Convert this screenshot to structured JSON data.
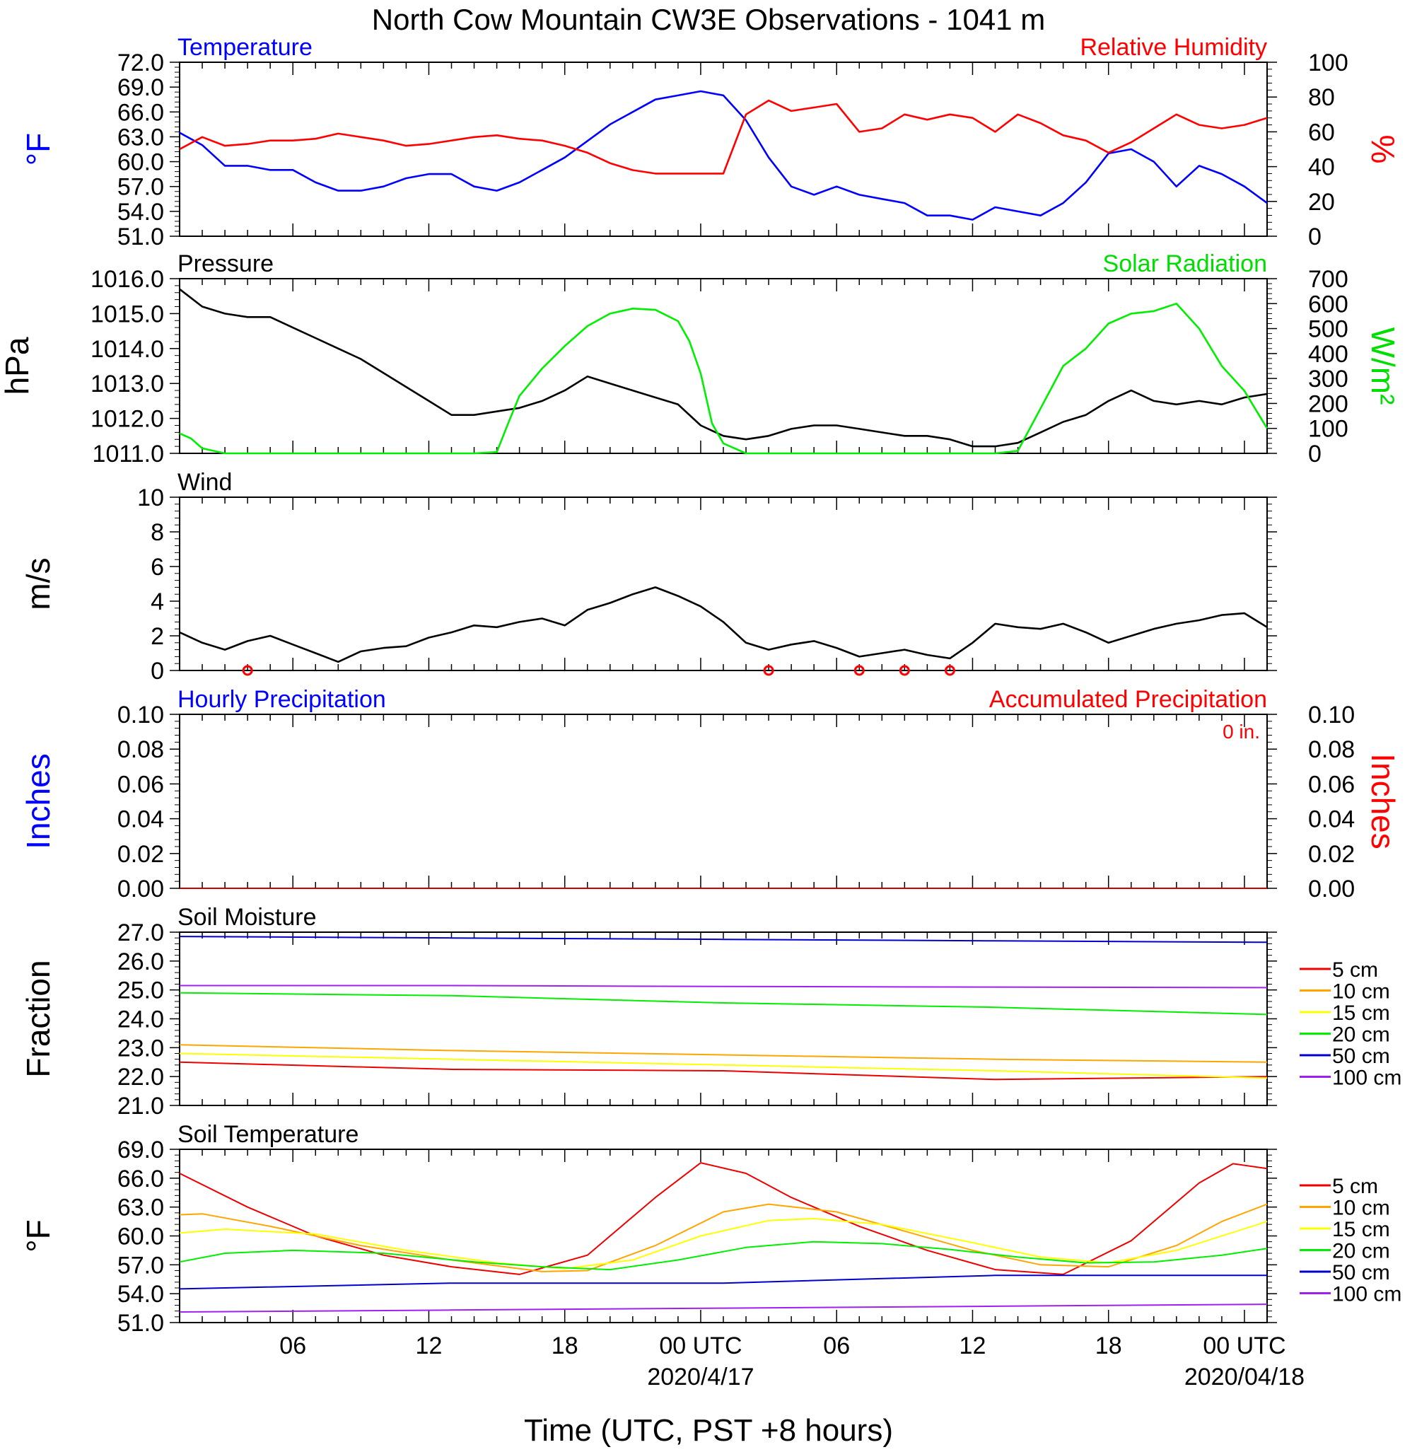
{
  "title": "North Cow Mountain CW3E Observations - 1041 m",
  "xaxis": {
    "label": "Time (UTC, PST +8 hours)",
    "range_hours": [
      0,
      48
    ],
    "ticks": [
      {
        "h": 5,
        "label": "06",
        "date": ""
      },
      {
        "h": 11,
        "label": "12",
        "date": ""
      },
      {
        "h": 17,
        "label": "18",
        "date": ""
      },
      {
        "h": 23,
        "label": "00 UTC",
        "date": "2020/4/17"
      },
      {
        "h": 29,
        "label": "06",
        "date": ""
      },
      {
        "h": 35,
        "label": "12",
        "date": ""
      },
      {
        "h": 41,
        "label": "18",
        "date": ""
      },
      {
        "h": 47,
        "label": "00 UTC",
        "date": "2020/04/18"
      }
    ]
  },
  "chart_data": [
    {
      "id": "temp_rh",
      "type": "line",
      "left_label": "Temperature",
      "right_label": "Relative Humidity",
      "yleft_unit": "°F",
      "yright_unit": "%",
      "ylim_left": [
        51,
        72
      ],
      "ylim_right": [
        0,
        100
      ],
      "yleft_ticks": [
        "51.0",
        "54.0",
        "57.0",
        "60.0",
        "63.0",
        "66.0",
        "69.0",
        "72.0"
      ],
      "yright_ticks": [
        "0",
        "20",
        "40",
        "60",
        "80",
        "100"
      ],
      "series": [
        {
          "name": "Temperature",
          "color": "#0000ff",
          "axis": "left",
          "x": [
            0,
            1,
            2,
            3,
            4,
            5,
            6,
            7,
            8,
            9,
            10,
            11,
            12,
            13,
            14,
            15,
            16,
            17,
            18,
            19,
            20,
            21,
            22,
            23,
            24,
            25,
            26,
            27,
            28,
            29,
            30,
            31,
            32,
            33,
            34,
            35,
            36,
            37,
            38,
            39,
            40,
            41,
            42,
            43,
            44,
            45,
            46,
            47,
            48
          ],
          "y": [
            63.5,
            62,
            59.5,
            59.5,
            59,
            59,
            57.5,
            56.5,
            56.5,
            57,
            58,
            58.5,
            58.5,
            57,
            56.5,
            57.5,
            59,
            60.5,
            62.5,
            64.5,
            66,
            67.5,
            68,
            68.5,
            68,
            65,
            60.5,
            57,
            56,
            57,
            56,
            55.5,
            55,
            53.5,
            53.5,
            53,
            54.5,
            54,
            53.5,
            55,
            57.5,
            61,
            61.5,
            60,
            57,
            59.5,
            58.5,
            57,
            55
          ]
        },
        {
          "name": "Relative Humidity",
          "color": "#ff0000",
          "axis": "right",
          "x": [
            0,
            1,
            2,
            3,
            4,
            5,
            6,
            7,
            8,
            9,
            10,
            11,
            12,
            13,
            14,
            15,
            16,
            17,
            18,
            19,
            20,
            21,
            22,
            23,
            24,
            25,
            26,
            27,
            28,
            29,
            30,
            31,
            32,
            33,
            34,
            35,
            36,
            37,
            38,
            39,
            40,
            41,
            42,
            43,
            44,
            45,
            46,
            47,
            48
          ],
          "y": [
            50,
            57,
            52,
            53,
            55,
            55,
            56,
            59,
            57,
            55,
            52,
            53,
            55,
            57,
            58,
            56,
            55,
            52,
            48,
            42,
            38,
            36,
            36,
            36,
            36,
            70,
            78,
            72,
            74,
            76,
            60,
            62,
            70,
            67,
            70,
            68,
            60,
            70,
            65,
            58,
            55,
            48,
            54,
            62,
            70,
            64,
            62,
            64,
            68
          ]
        }
      ]
    },
    {
      "id": "pressure_solar",
      "type": "line",
      "left_label": "Pressure",
      "right_label": "Solar Radiation",
      "yleft_unit": "hPa",
      "yright_unit": "W/m²",
      "ylim_left": [
        1011,
        1016
      ],
      "ylim_right": [
        0,
        700
      ],
      "yleft_ticks": [
        "1011.0",
        "1012.0",
        "1013.0",
        "1014.0",
        "1015.0",
        "1016.0"
      ],
      "yright_ticks": [
        "0",
        "100",
        "200",
        "300",
        "400",
        "500",
        "600",
        "700"
      ],
      "series": [
        {
          "name": "Pressure",
          "color": "#000000",
          "axis": "left",
          "x": [
            0,
            1,
            2,
            3,
            4,
            5,
            6,
            7,
            8,
            9,
            10,
            11,
            12,
            13,
            14,
            15,
            16,
            17,
            18,
            19,
            20,
            21,
            22,
            23,
            24,
            25,
            26,
            27,
            28,
            29,
            30,
            31,
            32,
            33,
            34,
            35,
            36,
            37,
            38,
            39,
            40,
            41,
            42,
            43,
            44,
            45,
            46,
            47,
            48
          ],
          "y": [
            1015.7,
            1015.2,
            1015.0,
            1014.9,
            1014.9,
            1014.6,
            1014.3,
            1014.0,
            1013.7,
            1013.3,
            1012.9,
            1012.5,
            1012.1,
            1012.1,
            1012.2,
            1012.3,
            1012.5,
            1012.8,
            1013.2,
            1013.0,
            1012.8,
            1012.6,
            1012.4,
            1011.8,
            1011.5,
            1011.4,
            1011.5,
            1011.7,
            1011.8,
            1011.8,
            1011.7,
            1011.6,
            1011.5,
            1011.5,
            1011.4,
            1011.2,
            1011.2,
            1011.3,
            1011.6,
            1011.9,
            1012.1,
            1012.5,
            1012.8,
            1012.5,
            1012.4,
            1012.5,
            1012.4,
            1012.6,
            1012.7
          ]
        },
        {
          "name": "Solar Radiation",
          "color": "#00ee00",
          "axis": "right",
          "x": [
            0,
            0.5,
            1,
            2,
            3,
            4,
            5,
            6,
            7,
            8,
            9,
            10,
            11,
            12,
            13,
            14,
            14.5,
            15,
            16,
            17,
            18,
            19,
            20,
            21,
            22,
            22.5,
            23,
            23.5,
            24,
            25,
            26,
            27,
            28,
            29,
            30,
            31,
            32,
            33,
            34,
            35,
            36,
            37,
            38,
            39,
            40,
            41,
            42,
            43,
            44,
            45,
            46,
            47,
            48
          ],
          "y": [
            80,
            60,
            20,
            0,
            0,
            0,
            0,
            0,
            0,
            0,
            0,
            0,
            0,
            0,
            0,
            5,
            120,
            230,
            340,
            430,
            510,
            560,
            580,
            575,
            530,
            450,
            320,
            120,
            40,
            0,
            0,
            0,
            0,
            0,
            0,
            0,
            0,
            0,
            0,
            0,
            0,
            10,
            180,
            350,
            420,
            520,
            560,
            570,
            600,
            500,
            350,
            250,
            100
          ]
        }
      ]
    },
    {
      "id": "wind",
      "type": "line",
      "left_label": "Wind",
      "yleft_unit": "m/s",
      "ylim_left": [
        0,
        10
      ],
      "yleft_ticks": [
        "0",
        "2",
        "4",
        "6",
        "8",
        "10"
      ],
      "series": [
        {
          "name": "Wind Speed",
          "color": "#000000",
          "x": [
            0,
            1,
            2,
            3,
            4,
            5,
            6,
            7,
            8,
            9,
            10,
            11,
            12,
            13,
            14,
            15,
            16,
            17,
            18,
            19,
            20,
            21,
            22,
            23,
            24,
            25,
            26,
            27,
            28,
            29,
            30,
            31,
            32,
            33,
            34,
            35,
            36,
            37,
            38,
            39,
            40,
            41,
            42,
            43,
            44,
            45,
            46,
            47,
            48
          ],
          "y": [
            2.2,
            1.6,
            1.2,
            1.7,
            2.0,
            1.5,
            1.0,
            0.5,
            1.1,
            1.3,
            1.4,
            1.9,
            2.2,
            2.6,
            2.5,
            2.8,
            3.0,
            2.6,
            3.5,
            3.9,
            4.4,
            4.8,
            4.3,
            3.7,
            2.8,
            1.6,
            1.2,
            1.5,
            1.7,
            1.3,
            0.8,
            1.0,
            1.2,
            0.9,
            0.7,
            1.6,
            2.7,
            2.5,
            2.4,
            2.7,
            2.2,
            1.6,
            2.0,
            2.4,
            2.7,
            2.9,
            3.2,
            3.3,
            2.5
          ]
        }
      ],
      "barbs_color": "#ff0000",
      "calm_markers_hours": [
        3,
        26,
        30,
        32,
        34
      ]
    },
    {
      "id": "precip",
      "type": "line",
      "left_label": "Hourly Precipitation",
      "right_label": "Accumulated Precipitation",
      "accum_note": "0 in.",
      "yleft_unit": "Inches",
      "yright_unit": "Inches",
      "ylim_left": [
        0,
        0.1
      ],
      "ylim_right": [
        0,
        0.1
      ],
      "yleft_ticks": [
        "0.00",
        "0.02",
        "0.04",
        "0.06",
        "0.08",
        "0.10"
      ],
      "yright_ticks": [
        "0.00",
        "0.02",
        "0.04",
        "0.06",
        "0.08",
        "0.10"
      ],
      "series": [
        {
          "name": "Hourly Precipitation",
          "color": "#0000ff",
          "x": [
            0,
            48
          ],
          "y": [
            0,
            0
          ]
        },
        {
          "name": "Accumulated Precipitation",
          "color": "#cc0000",
          "x": [
            0,
            48
          ],
          "y": [
            0,
            0
          ]
        }
      ]
    },
    {
      "id": "soil_moisture",
      "type": "line",
      "left_label": "Soil Moisture",
      "yleft_unit": "Fraction",
      "ylim_left": [
        21,
        27
      ],
      "yleft_ticks": [
        "21.0",
        "22.0",
        "23.0",
        "24.0",
        "25.0",
        "26.0",
        "27.0"
      ],
      "series": [
        {
          "name": "5 cm",
          "color": "#ee0000",
          "x": [
            0,
            12,
            24,
            36,
            48
          ],
          "y": [
            22.5,
            22.25,
            22.2,
            21.9,
            22.0
          ]
        },
        {
          "name": "10 cm",
          "color": "#ffa500",
          "x": [
            0,
            12,
            24,
            36,
            48
          ],
          "y": [
            23.1,
            22.9,
            22.75,
            22.6,
            22.5
          ]
        },
        {
          "name": "15 cm",
          "color": "#ffff00",
          "x": [
            0,
            12,
            24,
            36,
            48
          ],
          "y": [
            22.8,
            22.6,
            22.4,
            22.2,
            21.95
          ]
        },
        {
          "name": "20 cm",
          "color": "#00ee00",
          "x": [
            0,
            12,
            24,
            36,
            48
          ],
          "y": [
            24.9,
            24.8,
            24.55,
            24.4,
            24.15
          ]
        },
        {
          "name": "50 cm",
          "color": "#0000cc",
          "x": [
            0,
            12,
            24,
            36,
            48
          ],
          "y": [
            26.85,
            26.8,
            26.75,
            26.7,
            26.65
          ]
        },
        {
          "name": "100 cm",
          "color": "#a020f0",
          "x": [
            0,
            12,
            24,
            36,
            48
          ],
          "y": [
            25.15,
            25.15,
            25.12,
            25.1,
            25.08
          ]
        }
      ]
    },
    {
      "id": "soil_temp",
      "type": "line",
      "left_label": "Soil Temperature",
      "yleft_unit": "°F",
      "ylim_left": [
        51,
        69
      ],
      "yleft_ticks": [
        "51.0",
        "54.0",
        "57.0",
        "60.0",
        "63.0",
        "66.0",
        "69.0"
      ],
      "series": [
        {
          "name": "5 cm",
          "color": "#ee0000",
          "x": [
            0,
            3,
            6,
            9,
            12,
            15,
            18,
            21,
            23,
            25,
            27,
            30,
            33,
            36,
            39,
            42,
            45,
            46.5,
            48
          ],
          "y": [
            66.5,
            63,
            60,
            58,
            56.8,
            56,
            58,
            64,
            67.6,
            66.5,
            64,
            61,
            58.5,
            56.5,
            56,
            59.5,
            65.5,
            67.5,
            67
          ]
        },
        {
          "name": "10 cm",
          "color": "#ffa500",
          "x": [
            0,
            1,
            4,
            8,
            12,
            16,
            18,
            21,
            24,
            26,
            29,
            32,
            35,
            38,
            41,
            44,
            46,
            48
          ],
          "y": [
            62.2,
            62.3,
            61,
            59,
            57.5,
            56.3,
            56.4,
            59,
            62.5,
            63.3,
            62.5,
            60.5,
            58.5,
            57,
            56.8,
            59,
            61.5,
            63.3
          ]
        },
        {
          "name": "15 cm",
          "color": "#ffff00",
          "x": [
            0,
            2,
            6,
            10,
            14,
            17,
            20,
            23,
            26,
            28,
            31,
            35,
            38,
            41,
            44,
            48
          ],
          "y": [
            60.3,
            60.7,
            60.2,
            58.5,
            57.2,
            56.6,
            57.5,
            60,
            61.6,
            61.8,
            61.2,
            59.3,
            57.8,
            57.2,
            58.5,
            61.5
          ]
        },
        {
          "name": "20 cm",
          "color": "#00ee00",
          "x": [
            0,
            2,
            5,
            9,
            13,
            16,
            19,
            22,
            25,
            28,
            31,
            34,
            37,
            40,
            43,
            46,
            48
          ],
          "y": [
            57.3,
            58.2,
            58.5,
            58.2,
            57.3,
            56.8,
            56.5,
            57.5,
            58.8,
            59.4,
            59.2,
            58.6,
            57.8,
            57.2,
            57.3,
            58,
            58.7
          ]
        },
        {
          "name": "50 cm",
          "color": "#0000cc",
          "x": [
            0,
            12,
            24,
            36,
            48
          ],
          "y": [
            54.5,
            55.1,
            55.1,
            55.9,
            55.9
          ]
        },
        {
          "name": "100 cm",
          "color": "#a020f0",
          "x": [
            0,
            12,
            24,
            36,
            48
          ],
          "y": [
            52.1,
            52.3,
            52.5,
            52.7,
            52.9
          ]
        }
      ],
      "legend": [
        "5 cm",
        "10 cm",
        "15 cm",
        "20 cm",
        "50 cm",
        "100 cm"
      ]
    }
  ]
}
